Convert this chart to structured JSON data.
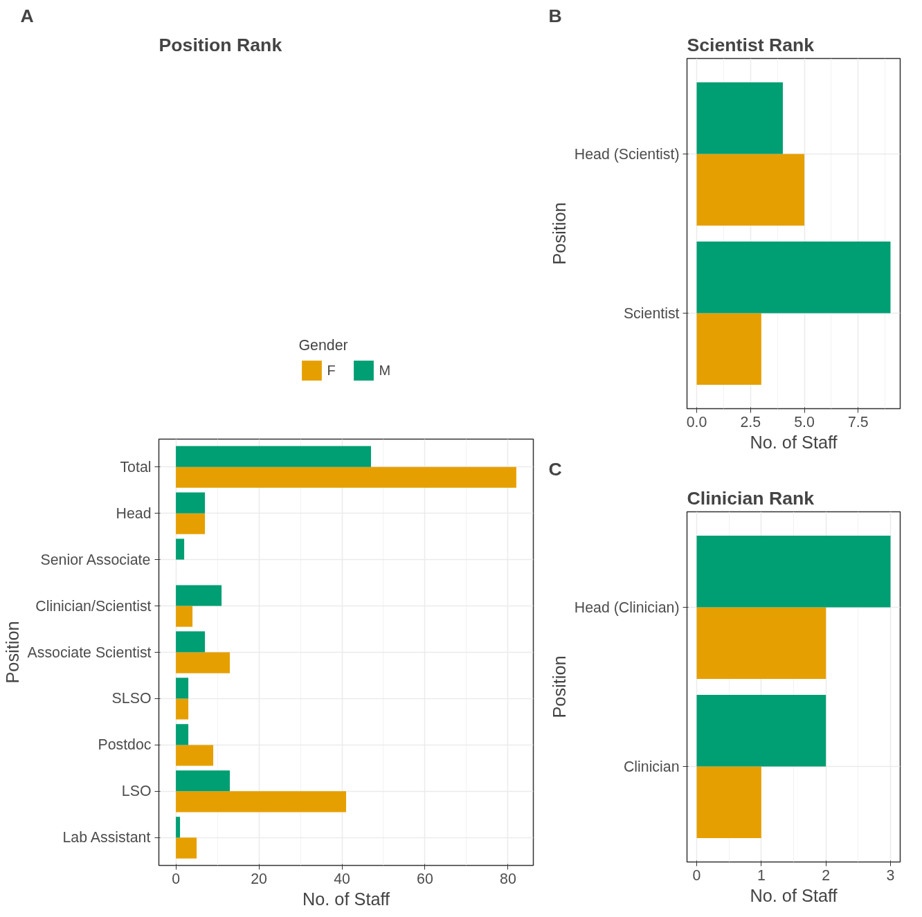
{
  "chart_data": [
    {
      "type": "bar",
      "orientation": "horizontal",
      "title": "Position Rank",
      "xlabel": "No. of Staff",
      "ylabel": "Position",
      "legend_title": "Gender",
      "legend": "top",
      "grid": true,
      "annotations": [
        "A"
      ],
      "categories": [
        "Total",
        "Head",
        "Senior Associate",
        "Clinician/Scientist",
        "Associate Scientist",
        "SLSO",
        "Postdoc",
        "LSO",
        "Lab Assistant"
      ],
      "series": [
        {
          "name": "F",
          "color": "#e69f00",
          "values": [
            82,
            7,
            0,
            4,
            13,
            3,
            9,
            41,
            5
          ]
        },
        {
          "name": "M",
          "color": "#009e73",
          "values": [
            47,
            7,
            2,
            11,
            7,
            3,
            3,
            13,
            1
          ]
        }
      ],
      "xlim": [
        -4.1,
        86.1
      ],
      "xticks": [
        0,
        20,
        40,
        60,
        80
      ]
    },
    {
      "type": "bar",
      "orientation": "horizontal",
      "title": "Scientist Rank",
      "xlabel": "No. of Staff",
      "ylabel": "Position",
      "grid": true,
      "annotations": [
        "B"
      ],
      "categories": [
        "Head (Scientist)",
        "Scientist"
      ],
      "series": [
        {
          "color": "#e69f00",
          "values": [
            5,
            3
          ]
        },
        {
          "color": "#009e73",
          "values": [
            4,
            9
          ]
        }
      ],
      "xlim": [
        -0.45,
        9.45
      ],
      "xticks": [
        {
          "value": 0,
          "label": "0.0"
        },
        {
          "value": 2.5,
          "label": "2.5"
        },
        {
          "value": 5,
          "label": "5.0"
        },
        {
          "value": 7.5,
          "label": "7.5"
        }
      ]
    },
    {
      "type": "bar",
      "orientation": "horizontal",
      "title": "Clinician Rank",
      "xlabel": "No. of Staff",
      "ylabel": "Position",
      "grid": true,
      "annotations": [
        "C"
      ],
      "categories": [
        "Head (Clinician)",
        "Clinician"
      ],
      "series": [
        {
          "color": "#e69f00",
          "values": [
            2,
            1
          ]
        },
        {
          "color": "#009e73",
          "values": [
            3,
            2
          ]
        }
      ],
      "xlim": [
        -0.15,
        3.15
      ],
      "xticks": [
        0,
        1,
        2,
        3
      ]
    }
  ]
}
